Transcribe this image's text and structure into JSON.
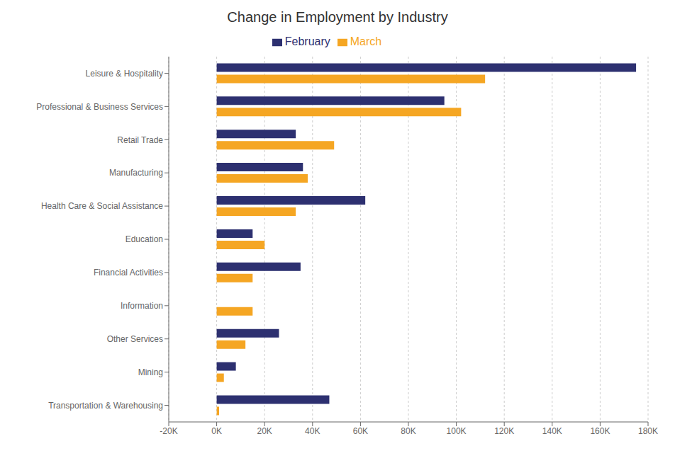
{
  "chart_data": {
    "type": "bar",
    "orientation": "horizontal",
    "title": "Change in Employment by Industry",
    "categories": [
      "Leisure & Hospitality",
      "Professional & Business Services",
      "Retail Trade",
      "Manufacturing",
      "Health Care & Social Assistance",
      "Education",
      "Financial Activities",
      "Information",
      "Other Services",
      "Mining",
      "Transportation & Warehousing"
    ],
    "series": [
      {
        "name": "February",
        "color": "#2d3070",
        "values": [
          175000,
          95000,
          33000,
          36000,
          62000,
          15000,
          35000,
          0,
          26000,
          8000,
          47000
        ]
      },
      {
        "name": "March",
        "color": "#f5a623",
        "values": [
          112000,
          102000,
          49000,
          38000,
          33000,
          20000,
          15000,
          15000,
          12000,
          3000,
          1000
        ]
      }
    ],
    "xlim": [
      -20000,
      180000
    ],
    "xticks": [
      {
        "value": -20000,
        "label": "-20K"
      },
      {
        "value": 0,
        "label": "0K"
      },
      {
        "value": 20000,
        "label": "20K"
      },
      {
        "value": 40000,
        "label": "40K"
      },
      {
        "value": 60000,
        "label": "60K"
      },
      {
        "value": 80000,
        "label": "80K"
      },
      {
        "value": 100000,
        "label": "100K"
      },
      {
        "value": 120000,
        "label": "120K"
      },
      {
        "value": 140000,
        "label": "140K"
      },
      {
        "value": 160000,
        "label": "160K"
      },
      {
        "value": 180000,
        "label": "180K"
      }
    ],
    "grid": true,
    "legend": "top"
  }
}
